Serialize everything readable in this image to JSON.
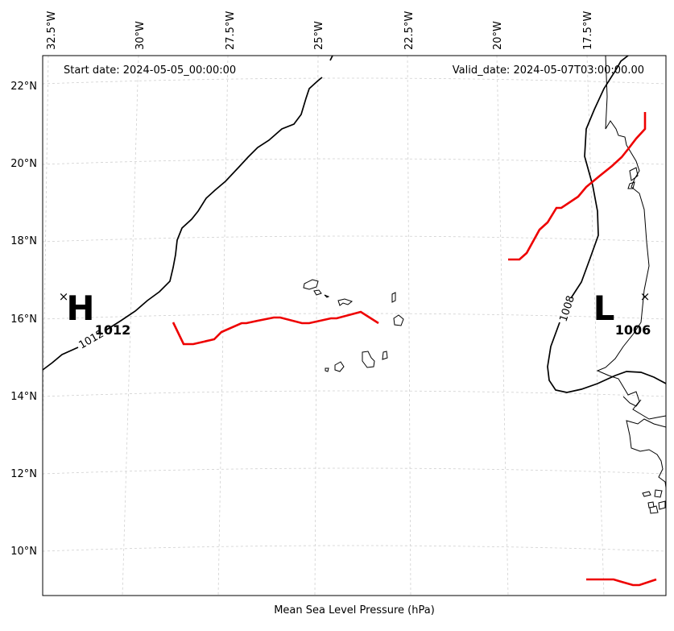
{
  "map": {
    "start_date": "Start date: 2024-05-05_00:00:00",
    "valid_date": "Valid_date: 2024-05-07T03:00:00.00",
    "xlabel": "Mean Sea Level Pressure (hPa)",
    "lon_labels": [
      "32.5°W",
      "30°W",
      "27.5°W",
      "25°W",
      "22.5°W",
      "20°W",
      "17.5°W"
    ],
    "lat_labels": [
      "22°N",
      "20°N",
      "18°N",
      "16°N",
      "14°N",
      "12°N",
      "10°N"
    ],
    "high": {
      "letter": "H",
      "value": "1012"
    },
    "low": {
      "letter": "L",
      "value": "1006"
    },
    "contours": [
      {
        "level": "1012",
        "label": "1012"
      },
      {
        "level": "1008",
        "label": "1008"
      }
    ],
    "colors": {
      "isobar": "#000000",
      "trough": "#ee0000",
      "grid": "#cccccc",
      "coast": "#000000"
    }
  }
}
